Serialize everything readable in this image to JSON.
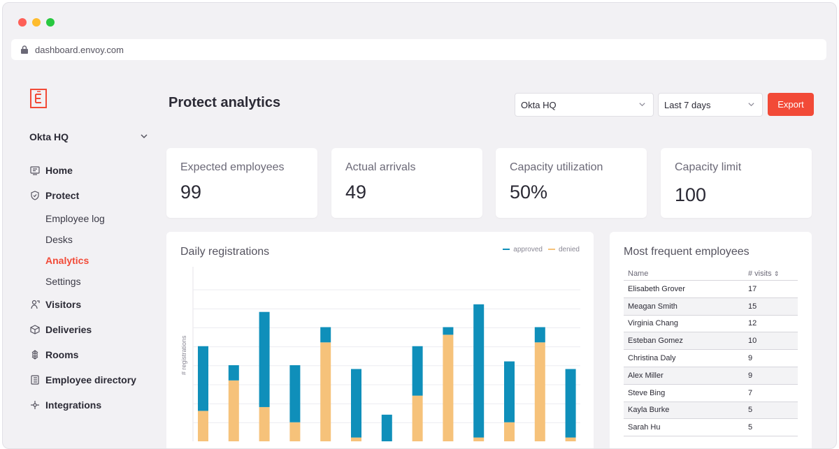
{
  "browser": {
    "url": "dashboard.envoy.com",
    "traffic_colors": [
      "#fe5f57",
      "#febc2e",
      "#28c840"
    ]
  },
  "sidebar": {
    "location": "Okta HQ",
    "items": [
      {
        "label": "Home",
        "icon": "home-icon"
      },
      {
        "label": "Protect",
        "icon": "shield-icon"
      },
      {
        "label": "Visitors",
        "icon": "visitor-icon"
      },
      {
        "label": "Deliveries",
        "icon": "package-icon"
      },
      {
        "label": "Rooms",
        "icon": "rooms-icon"
      },
      {
        "label": "Employee directory",
        "icon": "directory-icon"
      },
      {
        "label": "Integrations",
        "icon": "integrations-icon"
      }
    ],
    "protect_sub": [
      "Employee log",
      "Desks",
      "Analytics",
      "Settings"
    ],
    "active_sub": "Analytics"
  },
  "header": {
    "title": "Protect analytics",
    "location_select": "Okta HQ",
    "range_select": "Last 7 days",
    "export_label": "Export"
  },
  "stats": [
    {
      "label": "Expected employees",
      "value": "99"
    },
    {
      "label": "Actual arrivals",
      "value": "49"
    },
    {
      "label": "Capacity utilization",
      "value": "50%"
    },
    {
      "label": "Capacity limit",
      "value": "100"
    }
  ],
  "chart_data": {
    "type": "bar",
    "stacked": true,
    "title": "Daily registrations",
    "xlabel": "",
    "ylabel": "# registrations",
    "ylim": [
      0,
      40
    ],
    "series": [
      {
        "name": "denied",
        "color": "#f6c27a",
        "values": [
          8,
          16,
          9,
          5,
          26,
          1,
          0,
          12,
          28,
          1,
          5,
          26,
          1
        ]
      },
      {
        "name": "approved",
        "color": "#0f8fba",
        "values": [
          17,
          4,
          25,
          15,
          4,
          18,
          7,
          13,
          2,
          35,
          16,
          4,
          18
        ]
      }
    ],
    "legend": "top-right",
    "grid": true
  },
  "frequent": {
    "title": "Most frequent employees",
    "col_name": "Name",
    "col_visits": "# visits",
    "rows": [
      {
        "name": "Elisabeth Grover",
        "visits": "17"
      },
      {
        "name": "Meagan Smith",
        "visits": "15"
      },
      {
        "name": "Virginia Chang",
        "visits": "12"
      },
      {
        "name": "Esteban Gomez",
        "visits": "10"
      },
      {
        "name": "Christina Daly",
        "visits": "9"
      },
      {
        "name": "Alex Miller",
        "visits": "9"
      },
      {
        "name": "Steve Bing",
        "visits": "7"
      },
      {
        "name": "Kayla Burke",
        "visits": "5"
      },
      {
        "name": "Sarah Hu",
        "visits": "5"
      }
    ]
  },
  "colors": {
    "accent": "#f24a37",
    "approved": "#0f8fba",
    "denied": "#f6c27a"
  }
}
